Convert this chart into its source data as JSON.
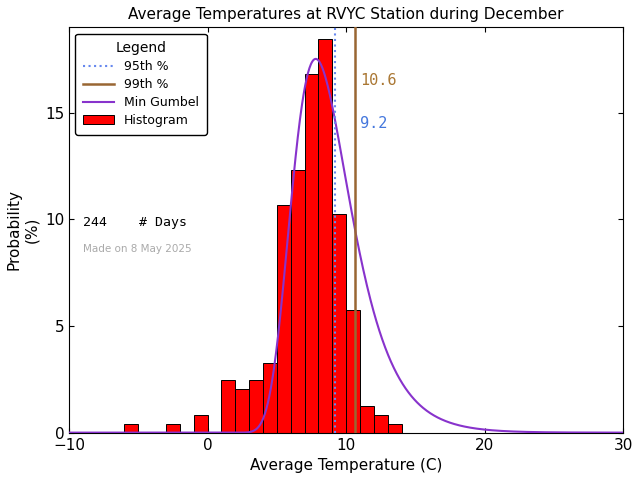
{
  "title": "Average Temperatures at RVYC Station during December",
  "xlabel": "Average Temperature (C)",
  "ylabel1": "Probability",
  "ylabel2": "(%)",
  "xlim": [
    -10,
    30
  ],
  "ylim": [
    0,
    19
  ],
  "xticks": [
    -10,
    0,
    10,
    20,
    30
  ],
  "yticks": [
    0,
    5,
    10,
    15
  ],
  "bin_edges": [
    -9,
    -8,
    -7,
    -6,
    -5,
    -4,
    -3,
    -2,
    -1,
    0,
    1,
    2,
    3,
    4,
    5,
    6,
    7,
    8,
    9,
    10,
    11,
    12,
    13,
    14
  ],
  "bin_heights": [
    0.0,
    0.0,
    0.0,
    0.41,
    0.0,
    0.0,
    0.41,
    0.0,
    0.82,
    0.0,
    2.46,
    2.05,
    2.46,
    3.28,
    10.66,
    12.3,
    16.8,
    18.44,
    10.25,
    5.74,
    1.23,
    0.82,
    0.41,
    0.0
  ],
  "bar_color": "#FF0000",
  "bar_edgecolor": "#000000",
  "gumbel_mu": 7.8,
  "gumbel_beta": 2.1,
  "percentile_95": 9.2,
  "percentile_99": 10.6,
  "n_days": 244,
  "date_label": "Made on 8 May 2025",
  "legend_title": "Legend",
  "bg_color": "#FFFFFF",
  "title_fontsize": 11,
  "axis_fontsize": 11,
  "tick_fontsize": 11,
  "line_95_color": "#6688EE",
  "line_99_color": "#996633",
  "gumbel_color": "#8833CC",
  "annotation_95_color": "#4477DD",
  "annotation_99_color": "#AA7733"
}
